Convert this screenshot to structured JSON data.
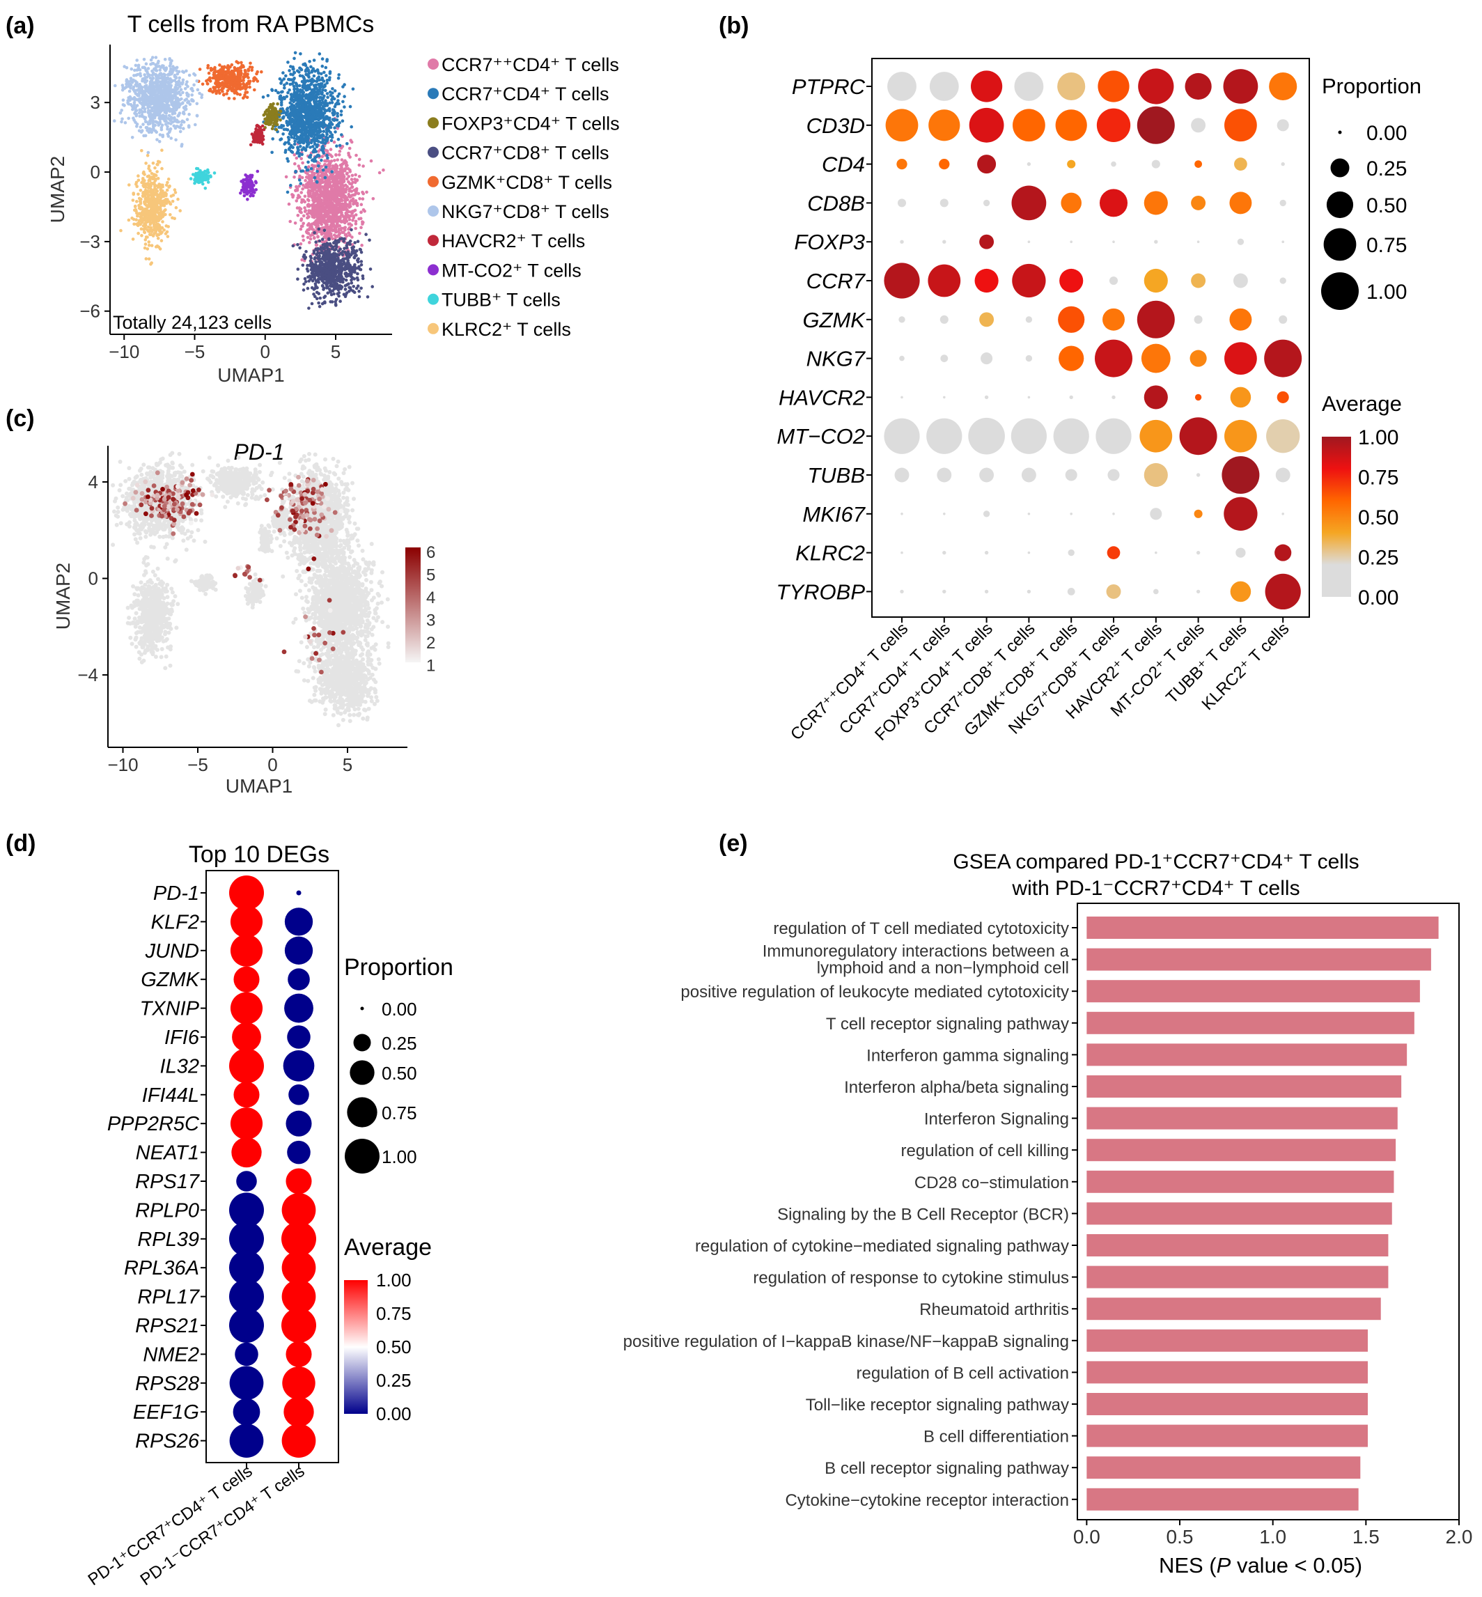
{
  "panel_labels": {
    "a": "(a)",
    "b": "(b)",
    "c": "(c)",
    "d": "(d)",
    "e": "(e)"
  },
  "colors": {
    "umap_clusters": [
      "#e07aa8",
      "#2a7ab8",
      "#8b7d1e",
      "#4a4e82",
      "#f06a30",
      "#aec6ea",
      "#c0283a",
      "#8c2fd0",
      "#3fd4dc",
      "#f7c67a"
    ],
    "avg_b_scale": [
      "#dcdcdc",
      "#dcdcdc",
      "#f5a623",
      "#ff6600",
      "#ee1111",
      "#a01820"
    ],
    "avg_d_scale": [
      "#00008b",
      "#ffffff",
      "#ff0000"
    ],
    "pd1_scale": [
      "#f5f5f5",
      "#8b0000"
    ],
    "bar_fill": "#d87784"
  },
  "chart_data": [
    {
      "id": "a",
      "type": "scatter",
      "title": "T cells from RA PBMCs",
      "xlabel": "UMAP1",
      "ylabel": "UMAP2",
      "xlim": [
        -11,
        9
      ],
      "ylim": [
        -7,
        5.5
      ],
      "x_ticks": [
        -10,
        -5,
        0,
        5
      ],
      "y_ticks": [
        -6,
        -3,
        0,
        3
      ],
      "annotation": "Totally 24,123 cells",
      "legend_position": "right",
      "clusters": [
        {
          "name": "CCR7⁺⁺CD4⁺ T cells",
          "color": "#e07aa8",
          "center": [
            4.5,
            -1.2
          ],
          "spread": [
            2.3,
            2.4
          ]
        },
        {
          "name": "CCR7⁺CD4⁺ T cells",
          "color": "#2a7ab8",
          "center": [
            3.0,
            2.5
          ],
          "spread": [
            2.2,
            2.2
          ]
        },
        {
          "name": "FOXP3⁺CD4⁺ T cells",
          "color": "#8b7d1e",
          "center": [
            0.5,
            2.4
          ],
          "spread": [
            0.6,
            0.5
          ]
        },
        {
          "name": "CCR7⁺CD8⁺ T cells",
          "color": "#4a4e82",
          "center": [
            4.8,
            -4.2
          ],
          "spread": [
            2.0,
            1.4
          ]
        },
        {
          "name": "GZMK⁺CD8⁺ T cells",
          "color": "#f06a30",
          "center": [
            -2.5,
            4.0
          ],
          "spread": [
            1.8,
            0.7
          ]
        },
        {
          "name": "NKG7⁺CD8⁺ T cells",
          "color": "#aec6ea",
          "center": [
            -7.5,
            3.2
          ],
          "spread": [
            2.5,
            1.6
          ]
        },
        {
          "name": "HAVCR2⁺ T cells",
          "color": "#c0283a",
          "center": [
            -0.5,
            1.6
          ],
          "spread": [
            0.4,
            0.5
          ]
        },
        {
          "name": "MT-CO2⁺ T cells",
          "color": "#8c2fd0",
          "center": [
            -1.2,
            -0.6
          ],
          "spread": [
            0.5,
            0.5
          ]
        },
        {
          "name": "TUBB⁺ T cells",
          "color": "#3fd4dc",
          "center": [
            -4.5,
            -0.2
          ],
          "spread": [
            0.7,
            0.3
          ]
        },
        {
          "name": "KLRC2⁺ T cells",
          "color": "#f7c67a",
          "center": [
            -8.0,
            -1.5
          ],
          "spread": [
            1.3,
            1.7
          ]
        }
      ]
    },
    {
      "id": "b",
      "type": "heatmap",
      "genes": [
        "PTPRC",
        "CD3D",
        "CD4",
        "CD8B",
        "FOXP3",
        "CCR7",
        "GZMK",
        "NKG7",
        "HAVCR2",
        "MT−CO2",
        "TUBB",
        "MKI67",
        "KLRC2",
        "TYROBP"
      ],
      "cell_types": [
        "CCR7⁺⁺CD4⁺ T cells",
        "CCR7⁺CD4⁺ T cells",
        "FOXP3⁺CD4⁺ T cells",
        "CCR7⁺CD8⁺ T cells",
        "GZMK⁺CD8⁺ T cells",
        "NKG7⁺CD8⁺ T cells",
        "HAVCR2⁺ T cells",
        "MT-CO2⁺ T cells",
        "TUBB⁺ T cells",
        "KLRC2⁺ T cells"
      ],
      "proportion": [
        [
          0.6,
          0.6,
          0.7,
          0.6,
          0.55,
          0.7,
          0.9,
          0.5,
          0.85,
          0.55
        ],
        [
          0.75,
          0.7,
          0.85,
          0.75,
          0.7,
          0.8,
          1.0,
          0.15,
          0.75,
          0.1
        ],
        [
          0.08,
          0.08,
          0.25,
          0.01,
          0.05,
          0.02,
          0.05,
          0.04,
          0.12,
          0.01
        ],
        [
          0.05,
          0.05,
          0.03,
          0.85,
          0.3,
          0.55,
          0.4,
          0.15,
          0.35,
          0.03
        ],
        [
          0.01,
          0.01,
          0.15,
          0.0,
          0.0,
          0.0,
          0.01,
          0.0,
          0.03,
          0.0
        ],
        [
          0.9,
          0.75,
          0.4,
          0.8,
          0.4,
          0.05,
          0.4,
          0.15,
          0.15,
          0.03
        ],
        [
          0.03,
          0.05,
          0.15,
          0.03,
          0.5,
          0.35,
          1.0,
          0.05,
          0.35,
          0.05
        ],
        [
          0.02,
          0.04,
          0.1,
          0.03,
          0.45,
          1.0,
          0.6,
          0.2,
          0.75,
          1.0
        ],
        [
          0.0,
          0.0,
          0.01,
          0.0,
          0.01,
          0.01,
          0.4,
          0.03,
          0.3,
          0.1
        ],
        [
          0.9,
          0.9,
          0.95,
          0.9,
          0.9,
          0.9,
          0.75,
          1.0,
          0.75,
          0.8
        ],
        [
          0.15,
          0.15,
          0.15,
          0.15,
          0.1,
          0.1,
          0.4,
          0.01,
          1.0,
          0.15
        ],
        [
          0.0,
          0.0,
          0.03,
          0.0,
          0.0,
          0.0,
          0.1,
          0.05,
          0.8,
          0.0
        ],
        [
          0.0,
          0.01,
          0.01,
          0.0,
          0.03,
          0.12,
          0.0,
          0.01,
          0.07,
          0.2
        ],
        [
          0.01,
          0.01,
          0.01,
          0.01,
          0.04,
          0.15,
          0.02,
          0.01,
          0.3,
          0.9
        ]
      ],
      "average": [
        [
          0.15,
          0.15,
          0.85,
          0.15,
          0.3,
          0.65,
          0.9,
          0.95,
          0.95,
          0.55
        ],
        [
          0.55,
          0.55,
          0.85,
          0.6,
          0.6,
          0.75,
          1.0,
          0.1,
          0.65,
          0.05
        ],
        [
          0.55,
          0.6,
          0.95,
          0.05,
          0.4,
          0.05,
          0.15,
          0.6,
          0.35,
          0.05
        ],
        [
          0.05,
          0.05,
          0.05,
          0.95,
          0.55,
          0.85,
          0.55,
          0.5,
          0.55,
          0.05
        ],
        [
          0.05,
          0.05,
          0.95,
          0.05,
          0.05,
          0.05,
          0.05,
          0.05,
          0.05,
          0.05
        ],
        [
          0.95,
          0.9,
          0.8,
          0.9,
          0.8,
          0.05,
          0.4,
          0.35,
          0.1,
          0.05
        ],
        [
          0.05,
          0.05,
          0.35,
          0.05,
          0.65,
          0.55,
          0.95,
          0.05,
          0.55,
          0.1
        ],
        [
          0.05,
          0.05,
          0.05,
          0.05,
          0.6,
          0.9,
          0.55,
          0.5,
          0.85,
          0.95
        ],
        [
          0.05,
          0.05,
          0.05,
          0.05,
          0.05,
          0.05,
          0.95,
          0.65,
          0.45,
          0.65
        ],
        [
          0.15,
          0.15,
          0.15,
          0.15,
          0.15,
          0.15,
          0.45,
          0.95,
          0.45,
          0.25
        ],
        [
          0.15,
          0.15,
          0.15,
          0.15,
          0.15,
          0.15,
          0.3,
          0.05,
          1.0,
          0.1
        ],
        [
          0.05,
          0.05,
          0.1,
          0.05,
          0.05,
          0.05,
          0.15,
          0.5,
          0.95,
          0.05
        ],
        [
          0.05,
          0.05,
          0.05,
          0.05,
          0.1,
          0.7,
          0.05,
          0.1,
          0.1,
          0.95
        ],
        [
          0.05,
          0.05,
          0.05,
          0.05,
          0.15,
          0.3,
          0.1,
          0.05,
          0.45,
          0.95
        ]
      ],
      "proportion_legend": {
        "title": "Proportion",
        "values": [
          "0.00",
          "0.25",
          "0.50",
          "0.75",
          "1.00"
        ]
      },
      "average_legend": {
        "title": "Average",
        "values": [
          "1.00",
          "0.75",
          "0.50",
          "0.25",
          "0.00"
        ]
      }
    },
    {
      "id": "c",
      "type": "scatter",
      "title": "PD-1",
      "xlabel": "UMAP1",
      "ylabel": "UMAP2",
      "xlim": [
        -11,
        9
      ],
      "ylim": [
        -7,
        5.5
      ],
      "x_ticks": [
        -10,
        -5,
        0,
        5
      ],
      "y_ticks": [
        -4,
        0,
        4
      ],
      "colorbar": {
        "values": [
          "6",
          "5",
          "4",
          "3",
          "2",
          "1"
        ],
        "min": 1,
        "max": 6
      }
    },
    {
      "id": "d",
      "type": "heatmap",
      "title": "Top 10 DEGs",
      "genes": [
        "PD-1",
        "KLF2",
        "JUND",
        "GZMK",
        "TXNIP",
        "IFI6",
        "IL32",
        "IFI44L",
        "PPP2R5C",
        "NEAT1",
        "RPS17",
        "RPLP0",
        "RPL39",
        "RPL36A",
        "RPL17",
        "RPS21",
        "NME2",
        "RPS28",
        "EEF1G",
        "RPS26"
      ],
      "groups": [
        "PD-1⁺CCR7⁺CD4⁺ T cells",
        "PD-1⁻CCR7⁺CD4⁺ T cells"
      ],
      "proportion": [
        [
          1.0,
          0.02
        ],
        [
          0.85,
          0.65
        ],
        [
          0.85,
          0.65
        ],
        [
          0.55,
          0.4
        ],
        [
          0.85,
          0.7
        ],
        [
          0.7,
          0.45
        ],
        [
          1.0,
          0.8
        ],
        [
          0.55,
          0.35
        ],
        [
          0.85,
          0.55
        ],
        [
          0.75,
          0.45
        ],
        [
          0.35,
          0.55
        ],
        [
          1.0,
          0.95
        ],
        [
          1.0,
          1.0
        ],
        [
          1.0,
          0.95
        ],
        [
          1.0,
          0.95
        ],
        [
          1.0,
          1.0
        ],
        [
          0.45,
          0.55
        ],
        [
          0.95,
          0.9
        ],
        [
          0.6,
          0.75
        ],
        [
          0.95,
          0.95
        ]
      ],
      "average": [
        [
          1,
          0
        ],
        [
          1,
          0
        ],
        [
          1,
          0
        ],
        [
          1,
          0
        ],
        [
          1,
          0
        ],
        [
          1,
          0
        ],
        [
          1,
          0
        ],
        [
          1,
          0
        ],
        [
          1,
          0
        ],
        [
          1,
          0
        ],
        [
          0,
          1
        ],
        [
          0,
          1
        ],
        [
          0,
          1
        ],
        [
          0,
          1
        ],
        [
          0,
          1
        ],
        [
          0,
          1
        ],
        [
          0,
          1
        ],
        [
          0,
          1
        ],
        [
          0,
          1
        ],
        [
          0,
          1
        ]
      ],
      "proportion_legend": {
        "title": "Proportion",
        "values": [
          "0.00",
          "0.25",
          "0.50",
          "0.75",
          "1.00"
        ]
      },
      "average_legend": {
        "title": "Average",
        "values": [
          "1.00",
          "0.75",
          "0.50",
          "0.25",
          "0.00"
        ]
      }
    },
    {
      "id": "e",
      "type": "bar",
      "orientation": "horizontal",
      "title_lines": [
        "GSEA compared PD-1⁺CCR7⁺CD4⁺ T cells",
        "with PD-1⁻CCR7⁺CD4⁺ T cells"
      ],
      "xlabel_prefix": "NES (",
      "xlabel_italic": "P",
      "xlabel_suffix": " value < 0.05)",
      "xlim": [
        -0.05,
        2.0
      ],
      "x_ticks": [
        "0.0",
        "0.5",
        "1.0",
        "1.5",
        "2.0"
      ],
      "categories": [
        [
          "regulation of T cell mediated cytotoxicity"
        ],
        [
          "Immunoregulatory interactions between a",
          "lymphoid and a non−lymphoid cell"
        ],
        [
          "positive regulation of leukocyte mediated cytotoxicity"
        ],
        [
          "T cell receptor signaling pathway"
        ],
        [
          "Interferon gamma signaling"
        ],
        [
          "Interferon alpha/beta signaling"
        ],
        [
          "Interferon Signaling"
        ],
        [
          "regulation of cell killing"
        ],
        [
          "CD28 co−stimulation"
        ],
        [
          "Signaling by the B Cell Receptor (BCR)"
        ],
        [
          "regulation of cytokine−mediated signaling pathway"
        ],
        [
          "regulation of response to cytokine stimulus"
        ],
        [
          "Rheumatoid arthritis"
        ],
        [
          "positive regulation of I−kappaB kinase/NF−kappaB signaling"
        ],
        [
          "regulation of B cell activation"
        ],
        [
          "Toll−like receptor signaling pathway"
        ],
        [
          "B cell differentiation"
        ],
        [
          "B cell receptor signaling pathway"
        ],
        [
          "Cytokine−cytokine receptor interaction"
        ]
      ],
      "values": [
        1.89,
        1.85,
        1.79,
        1.76,
        1.72,
        1.69,
        1.67,
        1.66,
        1.65,
        1.64,
        1.62,
        1.62,
        1.58,
        1.51,
        1.51,
        1.51,
        1.51,
        1.47,
        1.46
      ]
    }
  ]
}
